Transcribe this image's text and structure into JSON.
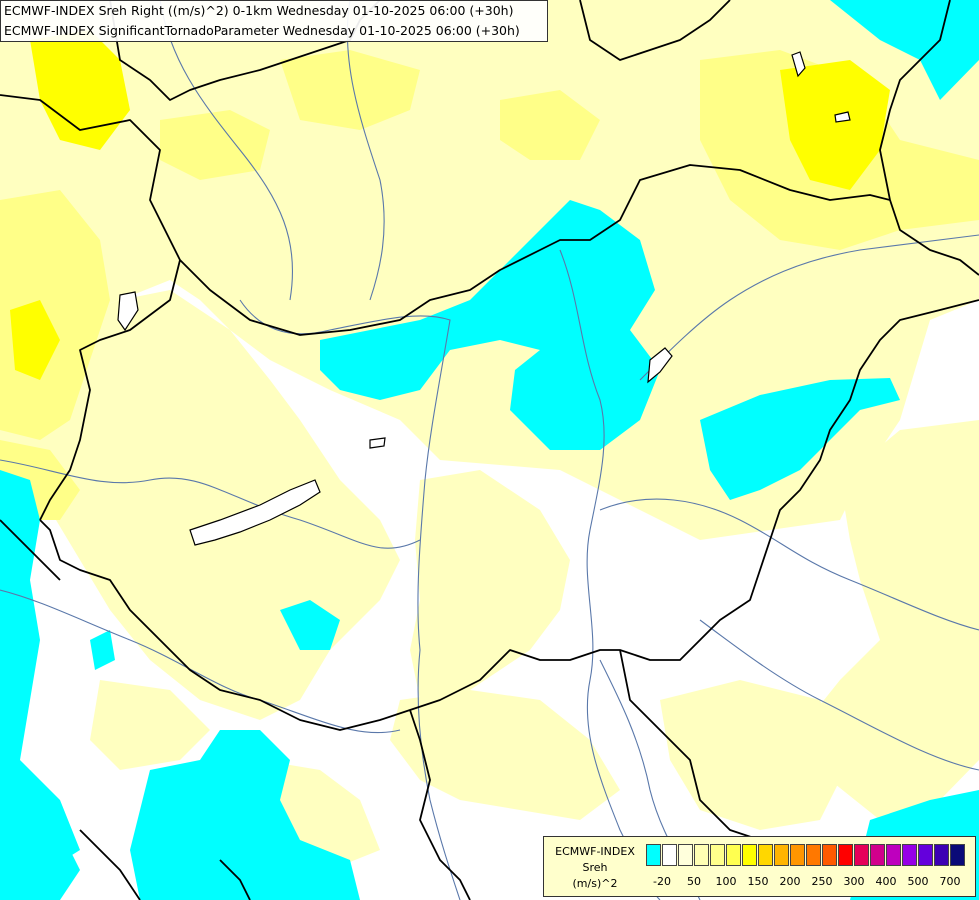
{
  "title": {
    "line1": "ECMWF-INDEX Sreh Right ((m/s)^2) 0-1km Wednesday 01-10-2025 06:00 (+30h)",
    "line2": "ECMWF-INDEX SignificantTornadoParameter Wednesday 01-10-2025 06:00 (+30h)"
  },
  "legend": {
    "name_lines": [
      "ECMWF-INDEX",
      "Sreh",
      "(m/s)^2"
    ],
    "colors": [
      "#00ffff",
      "#ffffff",
      "#ffffdc",
      "#ffffb4",
      "#ffff8c",
      "#ffff50",
      "#ffff00",
      "#ffd700",
      "#ffb400",
      "#ff9600",
      "#ff7800",
      "#ff5a00",
      "#ff0000",
      "#e6005a",
      "#d2008c",
      "#be00be",
      "#9600e6",
      "#6400dc",
      "#3c00b4",
      "#0a0a78"
    ],
    "ticks": [
      "-20",
      "50",
      "100",
      "150",
      "200",
      "250",
      "300",
      "400",
      "500",
      "700"
    ]
  },
  "colors": {
    "cyan": "#00ffff",
    "light_yellow": "#ffffc0",
    "mid_yellow": "#ffff88",
    "bright_yellow": "#ffff00",
    "border_line": "#000000",
    "river_line": "#5a78aa"
  }
}
